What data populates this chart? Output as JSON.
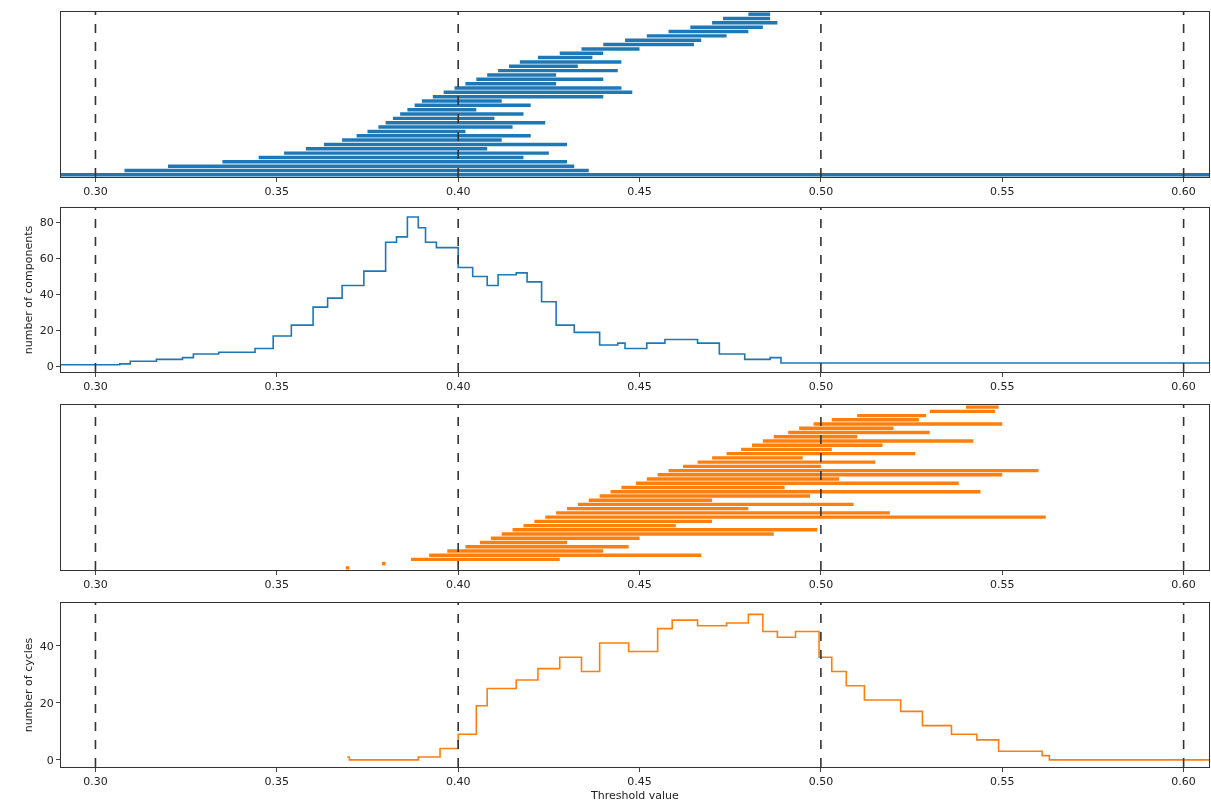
{
  "chart_data": [
    {
      "type": "bar",
      "orientation": "horizontal",
      "tick_labels": "x",
      "color": "#1f77b4",
      "categories": [
        null,
        null,
        null,
        null,
        null,
        null,
        null,
        null,
        null,
        null,
        null,
        null,
        null,
        null,
        null,
        null,
        null,
        null,
        null,
        null,
        null,
        null,
        null,
        null,
        null,
        null,
        null,
        null,
        null,
        null,
        null,
        null,
        null,
        null,
        null,
        null,
        null,
        null
      ],
      "base": [
        0.48,
        0.473,
        0.47,
        0.464,
        0.458,
        0.452,
        0.446,
        0.44,
        0.434,
        0.428,
        0.422,
        0.417,
        0.414,
        0.411,
        0.408,
        0.405,
        0.402,
        0.399,
        0.396,
        0.393,
        0.39,
        0.388,
        0.386,
        0.384,
        0.382,
        0.38,
        0.378,
        0.375,
        0.372,
        0.368,
        0.363,
        0.358,
        0.352,
        0.345,
        0.335,
        0.32,
        0.308,
        0.2905
      ],
      "values": [
        0.006,
        0.013,
        0.018,
        0.02,
        0.022,
        0.022,
        0.021,
        0.025,
        0.016,
        0.012,
        0.015,
        0.028,
        0.019,
        0.033,
        0.019,
        0.035,
        0.025,
        0.046,
        0.052,
        0.047,
        0.022,
        0.032,
        0.019,
        0.034,
        0.028,
        0.044,
        0.037,
        0.027,
        0.048,
        0.044,
        0.067,
        0.05,
        0.073,
        0.073,
        0.095,
        0.112,
        0.128,
        0.3165
      ],
      "xlim": [
        0.2905,
        0.607
      ],
      "xticks": [
        {
          "value": 0.3,
          "label": "0.30"
        },
        {
          "value": 0.35,
          "label": "0.35"
        },
        {
          "value": 0.4,
          "label": "0.40"
        },
        {
          "value": 0.45,
          "label": "0.45"
        },
        {
          "value": 0.5,
          "label": "0.50"
        },
        {
          "value": 0.55,
          "label": "0.55"
        },
        {
          "value": 0.6,
          "label": "0.60"
        }
      ],
      "ref_lines": [
        {
          "axis": "x",
          "value": 0.3,
          "color": "#333333",
          "line_style": "dashed"
        },
        {
          "axis": "x",
          "value": 0.4,
          "color": "#333333",
          "line_style": "dashed"
        },
        {
          "axis": "x",
          "value": 0.5,
          "color": "#333333",
          "line_style": "dashed"
        },
        {
          "axis": "x",
          "value": 0.6,
          "color": "#333333",
          "line_style": "dashed"
        }
      ]
    },
    {
      "type": "step",
      "ylabel": "number of components",
      "color": "#1f77b4",
      "x": [
        0.2905,
        0.3067,
        0.3096,
        0.3168,
        0.324,
        0.327,
        0.334,
        0.341,
        0.344,
        0.349,
        0.354,
        0.36,
        0.364,
        0.368,
        0.374,
        0.38,
        0.383,
        0.386,
        0.389,
        0.391,
        0.394,
        0.4,
        0.404,
        0.408,
        0.411,
        0.416,
        0.419,
        0.423,
        0.427,
        0.432,
        0.439,
        0.444,
        0.446,
        0.452,
        0.457,
        0.466,
        0.472,
        0.479,
        0.486,
        0.489,
        0.607
      ],
      "values": [
        1,
        1.5,
        3,
        4,
        5,
        7,
        8,
        8,
        10,
        17,
        23,
        33,
        38,
        45,
        53,
        69,
        72,
        83,
        77,
        69,
        66,
        55,
        50,
        45,
        51,
        52,
        47,
        36,
        23,
        19,
        12,
        13,
        10,
        13,
        15,
        13,
        7,
        4,
        5,
        2,
        2
      ],
      "xlim": [
        0.2905,
        0.607
      ],
      "xticks": [
        {
          "value": 0.3,
          "label": "0.30"
        },
        {
          "value": 0.35,
          "label": "0.35"
        },
        {
          "value": 0.4,
          "label": "0.40"
        },
        {
          "value": 0.45,
          "label": "0.45"
        },
        {
          "value": 0.5,
          "label": "0.50"
        },
        {
          "value": 0.55,
          "label": "0.55"
        },
        {
          "value": 0.6,
          "label": "0.60"
        }
      ],
      "ylim": [
        -3,
        88
      ],
      "yticks": [
        0,
        20,
        40,
        60,
        80
      ],
      "ref_lines": [
        {
          "axis": "x",
          "value": 0.3,
          "color": "#333333",
          "line_style": "dashed"
        },
        {
          "axis": "x",
          "value": 0.4,
          "color": "#333333",
          "line_style": "dashed"
        },
        {
          "axis": "x",
          "value": 0.5,
          "color": "#333333",
          "line_style": "dashed"
        },
        {
          "axis": "x",
          "value": 0.6,
          "color": "#333333",
          "line_style": "dashed"
        }
      ]
    },
    {
      "type": "bar",
      "orientation": "horizontal",
      "tick_labels": "x",
      "color": "#ff7f0e",
      "categories": [
        null,
        null,
        null,
        null,
        null,
        null,
        null,
        null,
        null,
        null,
        null,
        null,
        null,
        null,
        null,
        null,
        null,
        null,
        null,
        null,
        null,
        null,
        null,
        null,
        null,
        null,
        null,
        null,
        null,
        null,
        null,
        null,
        null,
        null,
        null,
        null,
        null,
        null,
        null
      ],
      "base": [
        0.54,
        0.53,
        0.51,
        0.503,
        0.498,
        0.494,
        0.491,
        0.487,
        0.484,
        0.481,
        0.478,
        0.474,
        0.47,
        0.466,
        0.462,
        0.458,
        0.455,
        0.452,
        0.449,
        0.445,
        0.442,
        0.439,
        0.436,
        0.433,
        0.43,
        0.427,
        0.424,
        0.421,
        0.418,
        0.415,
        0.412,
        0.409,
        0.406,
        0.402,
        0.397,
        0.392,
        0.387,
        0.379,
        0.369
      ],
      "values": [
        0.009,
        0.018,
        0.019,
        0.024,
        0.052,
        0.026,
        0.039,
        0.023,
        0.058,
        0.036,
        0.025,
        0.052,
        0.025,
        0.049,
        0.038,
        0.102,
        0.095,
        0.053,
        0.089,
        0.045,
        0.102,
        0.058,
        0.034,
        0.076,
        0.05,
        0.092,
        0.138,
        0.049,
        0.042,
        0.084,
        0.075,
        0.041,
        0.024,
        0.045,
        0.043,
        0.075,
        0.041,
        0.001,
        0.001
      ],
      "xlim": [
        0.2905,
        0.607
      ],
      "xticks": [
        {
          "value": 0.3,
          "label": "0.30"
        },
        {
          "value": 0.35,
          "label": "0.35"
        },
        {
          "value": 0.4,
          "label": "0.40"
        },
        {
          "value": 0.45,
          "label": "0.45"
        },
        {
          "value": 0.5,
          "label": "0.50"
        },
        {
          "value": 0.55,
          "label": "0.55"
        },
        {
          "value": 0.6,
          "label": "0.60"
        }
      ],
      "ref_lines": [
        {
          "axis": "x",
          "value": 0.3,
          "color": "#333333",
          "line_style": "dashed"
        },
        {
          "axis": "x",
          "value": 0.4,
          "color": "#333333",
          "line_style": "dashed"
        },
        {
          "axis": "x",
          "value": 0.5,
          "color": "#333333",
          "line_style": "dashed"
        },
        {
          "axis": "x",
          "value": 0.6,
          "color": "#333333",
          "line_style": "dashed"
        }
      ]
    },
    {
      "type": "step",
      "xlabel": "Threshold value",
      "ylabel": "number of cycles",
      "color": "#ff7f0e",
      "x": [
        0.3694,
        0.37,
        0.387,
        0.389,
        0.395,
        0.4,
        0.405,
        0.408,
        0.416,
        0.422,
        0.428,
        0.434,
        0.439,
        0.447,
        0.455,
        0.459,
        0.466,
        0.474,
        0.48,
        0.484,
        0.488,
        0.493,
        0.4995,
        0.503,
        0.507,
        0.512,
        0.518,
        0.522,
        0.528,
        0.536,
        0.543,
        0.549,
        0.561,
        0.563,
        0.607
      ],
      "values": [
        1,
        0,
        0,
        1,
        4,
        9,
        19,
        25,
        28,
        32,
        36,
        31,
        41,
        38,
        46,
        49,
        47,
        48,
        51,
        45,
        43,
        45,
        36,
        31,
        26,
        21,
        21,
        17,
        12,
        9,
        7,
        3,
        1.5,
        0,
        0
      ],
      "xlim": [
        0.2905,
        0.607
      ],
      "xticks": [
        {
          "value": 0.3,
          "label": "0.30"
        },
        {
          "value": 0.35,
          "label": "0.35"
        },
        {
          "value": 0.4,
          "label": "0.40"
        },
        {
          "value": 0.45,
          "label": "0.45"
        },
        {
          "value": 0.5,
          "label": "0.50"
        },
        {
          "value": 0.55,
          "label": "0.55"
        },
        {
          "value": 0.6,
          "label": "0.60"
        }
      ],
      "ylim": [
        -2.5,
        55
      ],
      "yticks": [
        0,
        20,
        40
      ],
      "ref_lines": [
        {
          "axis": "x",
          "value": 0.3,
          "color": "#333333",
          "line_style": "dashed"
        },
        {
          "axis": "x",
          "value": 0.4,
          "color": "#333333",
          "line_style": "dashed"
        },
        {
          "axis": "x",
          "value": 0.5,
          "color": "#333333",
          "line_style": "dashed"
        },
        {
          "axis": "x",
          "value": 0.6,
          "color": "#333333",
          "line_style": "dashed"
        }
      ]
    }
  ]
}
